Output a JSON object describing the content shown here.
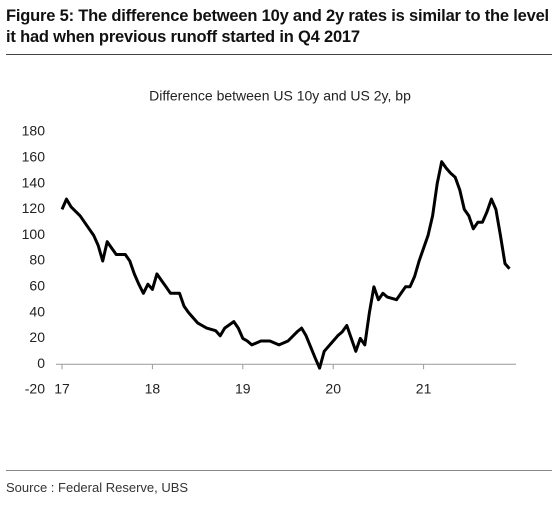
{
  "title": "Figure 5: The difference between 10y and 2y rates is similar to the level it had when previous runoff started in Q4 2017",
  "source": "Source : Federal Reserve, UBS",
  "chart_data": {
    "type": "line",
    "title": "Difference between US 10y and US 2y, bp",
    "x": [
      17.0,
      17.05,
      17.1,
      17.2,
      17.3,
      17.35,
      17.4,
      17.45,
      17.5,
      17.55,
      17.6,
      17.7,
      17.75,
      17.8,
      17.85,
      17.9,
      17.95,
      18.0,
      18.05,
      18.1,
      18.15,
      18.2,
      18.3,
      18.35,
      18.4,
      18.5,
      18.55,
      18.6,
      18.7,
      18.75,
      18.8,
      18.9,
      18.95,
      19.0,
      19.05,
      19.1,
      19.2,
      19.3,
      19.4,
      19.5,
      19.6,
      19.65,
      19.7,
      19.8,
      19.85,
      19.9,
      20.0,
      20.05,
      20.1,
      20.15,
      20.2,
      20.25,
      20.3,
      20.35,
      20.4,
      20.45,
      20.5,
      20.55,
      20.6,
      20.7,
      20.75,
      20.8,
      20.85,
      20.9,
      20.95,
      21.0,
      21.05,
      21.1,
      21.15,
      21.2,
      21.25,
      21.3,
      21.35,
      21.4,
      21.45,
      21.5,
      21.55,
      21.6,
      21.65,
      21.7,
      21.75,
      21.8,
      21.85,
      21.9,
      21.95
    ],
    "series": [
      {
        "name": "Difference between US 10y and US 2y",
        "color": "#000000",
        "values": [
          120,
          128,
          122,
          115,
          105,
          100,
          92,
          80,
          95,
          90,
          85,
          85,
          80,
          70,
          62,
          55,
          62,
          58,
          70,
          65,
          60,
          55,
          55,
          45,
          40,
          32,
          30,
          28,
          26,
          22,
          28,
          33,
          28,
          20,
          18,
          15,
          18,
          18,
          15,
          18,
          25,
          28,
          22,
          5,
          -3,
          10,
          18,
          22,
          25,
          30,
          20,
          10,
          20,
          15,
          40,
          60,
          50,
          55,
          52,
          50,
          55,
          60,
          60,
          68,
          80,
          90,
          100,
          115,
          140,
          157,
          152,
          148,
          145,
          135,
          120,
          115,
          105,
          110,
          110,
          118,
          128,
          120,
          100,
          78,
          74
        ]
      }
    ],
    "xlim": [
      17,
      22
    ],
    "xticks": [
      17,
      18,
      19,
      20,
      21
    ],
    "ylim": [
      -20,
      180
    ],
    "yticks": [
      -20,
      0,
      20,
      40,
      60,
      80,
      100,
      120,
      140,
      160,
      180
    ]
  }
}
